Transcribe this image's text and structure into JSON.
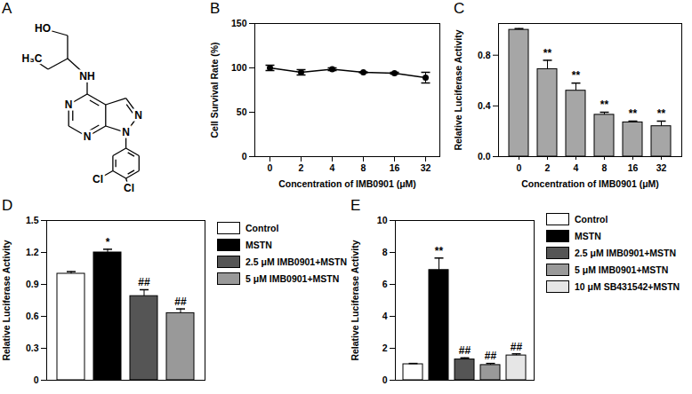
{
  "structure": {
    "panel": "A",
    "atom_labels": [
      "HO",
      "H₃C",
      "NH",
      "N",
      "N",
      "N",
      "N",
      "Cl",
      "Cl"
    ]
  },
  "chart_data": [
    {
      "panel": "B",
      "type": "line",
      "categories": [
        "0",
        "2",
        "4",
        "8",
        "16",
        "32"
      ],
      "values": [
        100,
        95,
        98.5,
        95,
        94,
        89
      ],
      "errors": [
        3,
        3,
        1.5,
        0.5,
        1,
        6
      ],
      "x_label": "Concentration of IMB0901 (μM)",
      "y_label": "Cell Survival Rate (%)",
      "ylim": [
        0,
        150
      ],
      "yticks": [
        0,
        50,
        100,
        150
      ],
      "color": "#000000",
      "marker": "circle"
    },
    {
      "panel": "C",
      "type": "bar",
      "categories": [
        "0",
        "2",
        "4",
        "8",
        "16",
        "32"
      ],
      "values": [
        1.0,
        0.69,
        0.52,
        0.33,
        0.27,
        0.24
      ],
      "errors": [
        0.01,
        0.07,
        0.06,
        0.02,
        0.01,
        0.04
      ],
      "significance": [
        null,
        "**",
        "**",
        "**",
        "**",
        "**"
      ],
      "x_label": "Concentration of IMB0901 (μM)",
      "y_label": "Relative Luciferase Activity",
      "ylim": [
        0,
        1.05
      ],
      "yticks": [
        {
          "value": 0,
          "label": "0.0"
        },
        0.4,
        0.8
      ],
      "color": "#a6a6a6"
    },
    {
      "panel": "D",
      "type": "bar",
      "categories": [
        "Control",
        "MSTN",
        "2.5 μM IMB0901+MSTN",
        "5 μM IMB0901+MSTN"
      ],
      "values": [
        1.0,
        1.2,
        0.79,
        0.63
      ],
      "errors": [
        0.02,
        0.03,
        0.06,
        0.04
      ],
      "significance": [
        null,
        "*",
        "##",
        "##"
      ],
      "y_label": "Relative Luciferase Activity",
      "ylim": [
        0,
        1.5
      ],
      "yticks": [
        0,
        0.3,
        0.6,
        0.9,
        1.2,
        1.5
      ],
      "colors": [
        "#ffffff",
        "#000000",
        "#555555",
        "#999999"
      ],
      "legend": "right",
      "tick_labels": "y"
    },
    {
      "panel": "E",
      "type": "bar",
      "categories": [
        "Control",
        "MSTN",
        "2.5 μM IMB0901+MSTN",
        "5 μM IMB0901+MSTN",
        "10 μM SB431542+MSTN"
      ],
      "values": [
        1.0,
        6.9,
        1.3,
        0.95,
        1.55
      ],
      "errors": [
        0.05,
        0.75,
        0.1,
        0.1,
        0.1
      ],
      "significance": [
        null,
        "**",
        "##",
        "##",
        "##"
      ],
      "y_label": "Relative Luciferase Activity",
      "ylim": [
        0,
        10
      ],
      "yticks": [
        0,
        2,
        4,
        6,
        8,
        10
      ],
      "colors": [
        "#ffffff",
        "#000000",
        "#555555",
        "#999999",
        "#e6e6e6"
      ],
      "legend": "right",
      "tick_labels": "y"
    }
  ]
}
